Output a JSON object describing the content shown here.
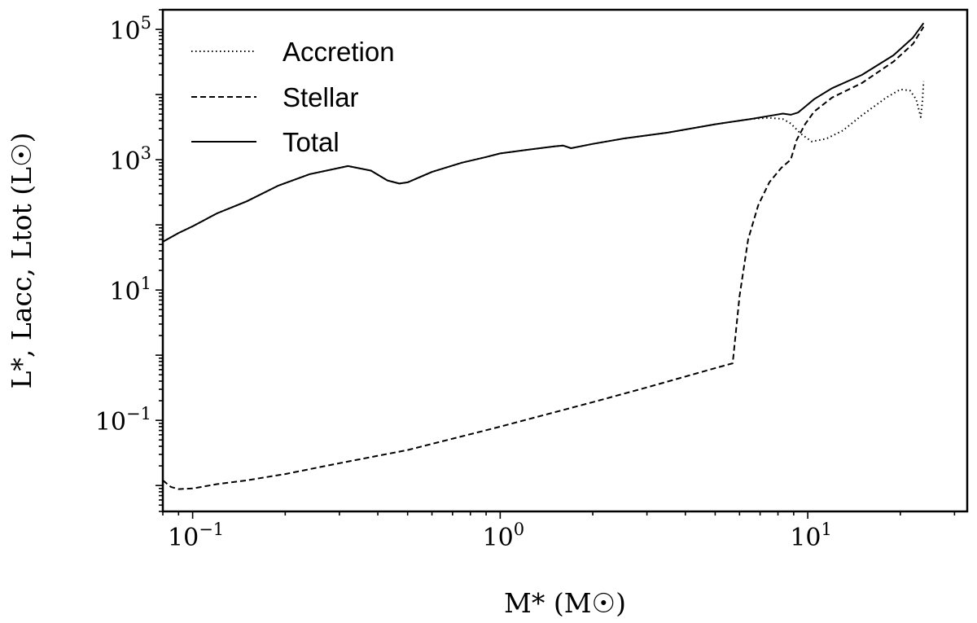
{
  "chart_data": {
    "type": "line",
    "xscale": "log",
    "yscale": "log",
    "xlim": [
      0.08,
      33
    ],
    "ylim": [
      0.004,
      200000
    ],
    "xlabel": "M* (M☉)",
    "ylabel": "L*, Lacc, Ltot (L☉)",
    "x_ticks": [
      {
        "value": 0.1,
        "base": "10",
        "exp": "−1"
      },
      {
        "value": 1,
        "base": "10",
        "exp": "0"
      },
      {
        "value": 10,
        "base": "10",
        "exp": "1"
      }
    ],
    "y_ticks": [
      {
        "value": 0.1,
        "base": "10",
        "exp": "−1"
      },
      {
        "value": 10,
        "base": "10",
        "exp": "1"
      },
      {
        "value": 1000,
        "base": "10",
        "exp": "3"
      },
      {
        "value": 100000,
        "base": "10",
        "exp": "5"
      }
    ],
    "legend_position": "top-left",
    "series": [
      {
        "name": "Accretion",
        "style": "dotted",
        "points": [
          [
            0.08,
            55
          ],
          [
            0.09,
            75
          ],
          [
            0.1,
            95
          ],
          [
            0.12,
            150
          ],
          [
            0.15,
            230
          ],
          [
            0.19,
            400
          ],
          [
            0.24,
            600
          ],
          [
            0.32,
            800
          ],
          [
            0.38,
            680
          ],
          [
            0.43,
            480
          ],
          [
            0.47,
            430
          ],
          [
            0.5,
            450
          ],
          [
            0.6,
            650
          ],
          [
            0.75,
            900
          ],
          [
            0.9,
            1100
          ],
          [
            1.0,
            1250
          ],
          [
            1.2,
            1400
          ],
          [
            1.5,
            1600
          ],
          [
            1.6,
            1650
          ],
          [
            1.7,
            1500
          ],
          [
            2.0,
            1750
          ],
          [
            2.5,
            2100
          ],
          [
            3.5,
            2600
          ],
          [
            5.0,
            3500
          ],
          [
            6.5,
            4200
          ],
          [
            7.5,
            4400
          ],
          [
            8.3,
            4200
          ],
          [
            8.8,
            3600
          ],
          [
            9.5,
            2500
          ],
          [
            10.3,
            1900
          ],
          [
            11.5,
            2100
          ],
          [
            13,
            2800
          ],
          [
            15,
            4800
          ],
          [
            18,
            9000
          ],
          [
            20,
            12000
          ],
          [
            21.5,
            11500
          ],
          [
            22.5,
            8500
          ],
          [
            23.3,
            4500
          ],
          [
            23.6,
            8000
          ],
          [
            23.8,
            16000
          ]
        ]
      },
      {
        "name": "Stellar",
        "style": "dashed",
        "points": [
          [
            0.08,
            0.012
          ],
          [
            0.085,
            0.0095
          ],
          [
            0.09,
            0.0088
          ],
          [
            0.1,
            0.009
          ],
          [
            0.12,
            0.0105
          ],
          [
            0.15,
            0.012
          ],
          [
            0.2,
            0.015
          ],
          [
            0.3,
            0.022
          ],
          [
            0.5,
            0.035
          ],
          [
            1.0,
            0.08
          ],
          [
            2.0,
            0.19
          ],
          [
            3.0,
            0.32
          ],
          [
            4.5,
            0.55
          ],
          [
            5.7,
            0.75
          ],
          [
            6.0,
            8
          ],
          [
            6.4,
            60
          ],
          [
            6.9,
            200
          ],
          [
            7.5,
            450
          ],
          [
            8.2,
            750
          ],
          [
            8.8,
            1000
          ],
          [
            9.2,
            2000
          ],
          [
            9.8,
            3500
          ],
          [
            10.5,
            5500
          ],
          [
            12,
            9000
          ],
          [
            15,
            15000
          ],
          [
            19,
            32000
          ],
          [
            22,
            60000
          ],
          [
            23.8,
            110000
          ]
        ]
      },
      {
        "name": "Total",
        "style": "solid",
        "points": [
          [
            0.08,
            55
          ],
          [
            0.09,
            75
          ],
          [
            0.1,
            95
          ],
          [
            0.12,
            150
          ],
          [
            0.15,
            230
          ],
          [
            0.19,
            400
          ],
          [
            0.24,
            600
          ],
          [
            0.32,
            800
          ],
          [
            0.38,
            680
          ],
          [
            0.43,
            480
          ],
          [
            0.47,
            430
          ],
          [
            0.5,
            450
          ],
          [
            0.6,
            650
          ],
          [
            0.75,
            900
          ],
          [
            0.9,
            1100
          ],
          [
            1.0,
            1250
          ],
          [
            1.2,
            1400
          ],
          [
            1.5,
            1600
          ],
          [
            1.6,
            1650
          ],
          [
            1.7,
            1500
          ],
          [
            2.0,
            1750
          ],
          [
            2.5,
            2100
          ],
          [
            3.5,
            2600
          ],
          [
            5.0,
            3500
          ],
          [
            6.5,
            4200
          ],
          [
            7.5,
            4700
          ],
          [
            8.3,
            5100
          ],
          [
            8.8,
            4900
          ],
          [
            9.3,
            5300
          ],
          [
            9.8,
            6500
          ],
          [
            10.5,
            8500
          ],
          [
            12,
            12500
          ],
          [
            15,
            20000
          ],
          [
            19,
            40000
          ],
          [
            22,
            75000
          ],
          [
            23.8,
            125000
          ]
        ]
      }
    ]
  }
}
